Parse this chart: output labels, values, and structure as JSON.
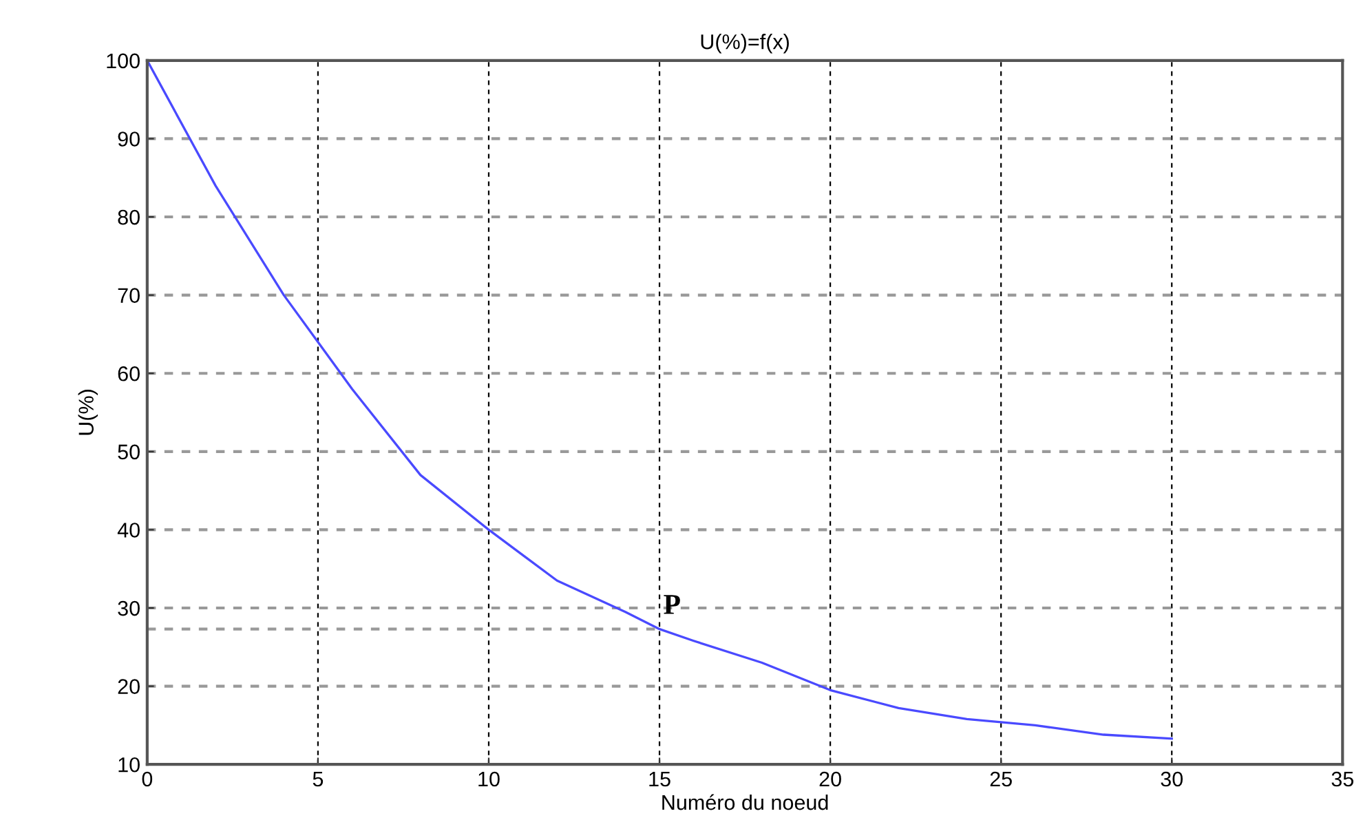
{
  "chart_data": {
    "type": "line",
    "title": "U(%)=f(x)",
    "xlabel": "Numéro du noeud",
    "ylabel": "U(%)",
    "x": [
      0,
      2,
      4,
      5,
      6,
      8,
      10,
      12,
      14,
      15,
      16,
      18,
      20,
      22,
      24,
      25,
      26,
      28,
      30
    ],
    "series": [
      {
        "color": "#4a4aff",
        "values": [
          100,
          84,
          70,
          64,
          58,
          47,
          40,
          33.5,
          29.5,
          27.3,
          25.8,
          23,
          19.5,
          17.2,
          15.8,
          15.4,
          15,
          13.8,
          13.3
        ]
      }
    ],
    "xlim": [
      0,
      35
    ],
    "xticks": [
      0,
      5,
      10,
      15,
      20,
      25,
      30,
      35
    ],
    "ylim": [
      10,
      100
    ],
    "yticks": [
      10,
      20,
      30,
      40,
      50,
      60,
      70,
      80,
      90,
      100
    ],
    "grid": true,
    "line_style": "solid",
    "marker": "none",
    "annotations": [
      {
        "text": "P",
        "x": 15,
        "y": 27.3
      }
    ]
  }
}
